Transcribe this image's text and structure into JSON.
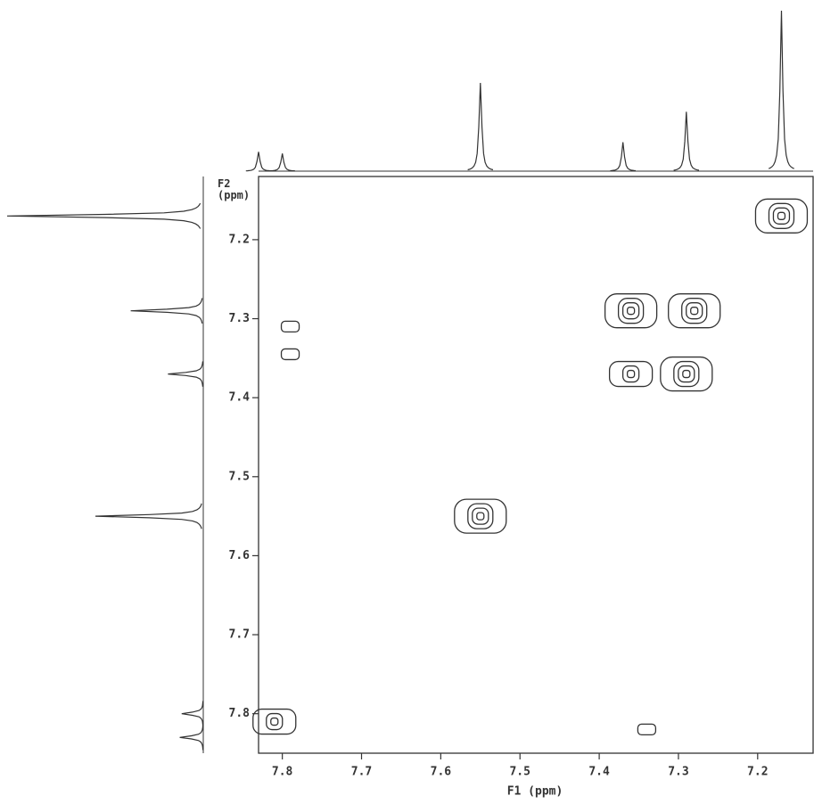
{
  "chart_data": {
    "type": "contour",
    "xlabel": "F1 (ppm)",
    "ylabel": "F2 (ppm)",
    "xlim": [
      7.83,
      7.13
    ],
    "ylim": [
      7.12,
      7.85
    ],
    "xticks": [
      7.8,
      7.7,
      7.6,
      7.5,
      7.4,
      7.3,
      7.2
    ],
    "yticks": [
      7.2,
      7.3,
      7.4,
      7.5,
      7.6,
      7.7,
      7.8
    ],
    "color": "#333333",
    "peaks": {
      "x": [
        7.17,
        7.36,
        7.28,
        7.36,
        7.29,
        7.55,
        7.81,
        7.79,
        7.79,
        7.34
      ],
      "y": [
        7.17,
        7.29,
        7.29,
        7.37,
        7.37,
        7.55,
        7.81,
        7.31,
        7.345,
        7.82
      ],
      "levels": [
        4,
        4,
        4,
        3,
        4,
        4,
        3,
        1,
        1,
        1
      ]
    },
    "projection": {
      "x": [
        7.83,
        7.8,
        7.55,
        7.37,
        7.29,
        7.17
      ],
      "values": [
        0.12,
        0.11,
        0.55,
        0.18,
        0.37,
        1.0
      ]
    }
  }
}
